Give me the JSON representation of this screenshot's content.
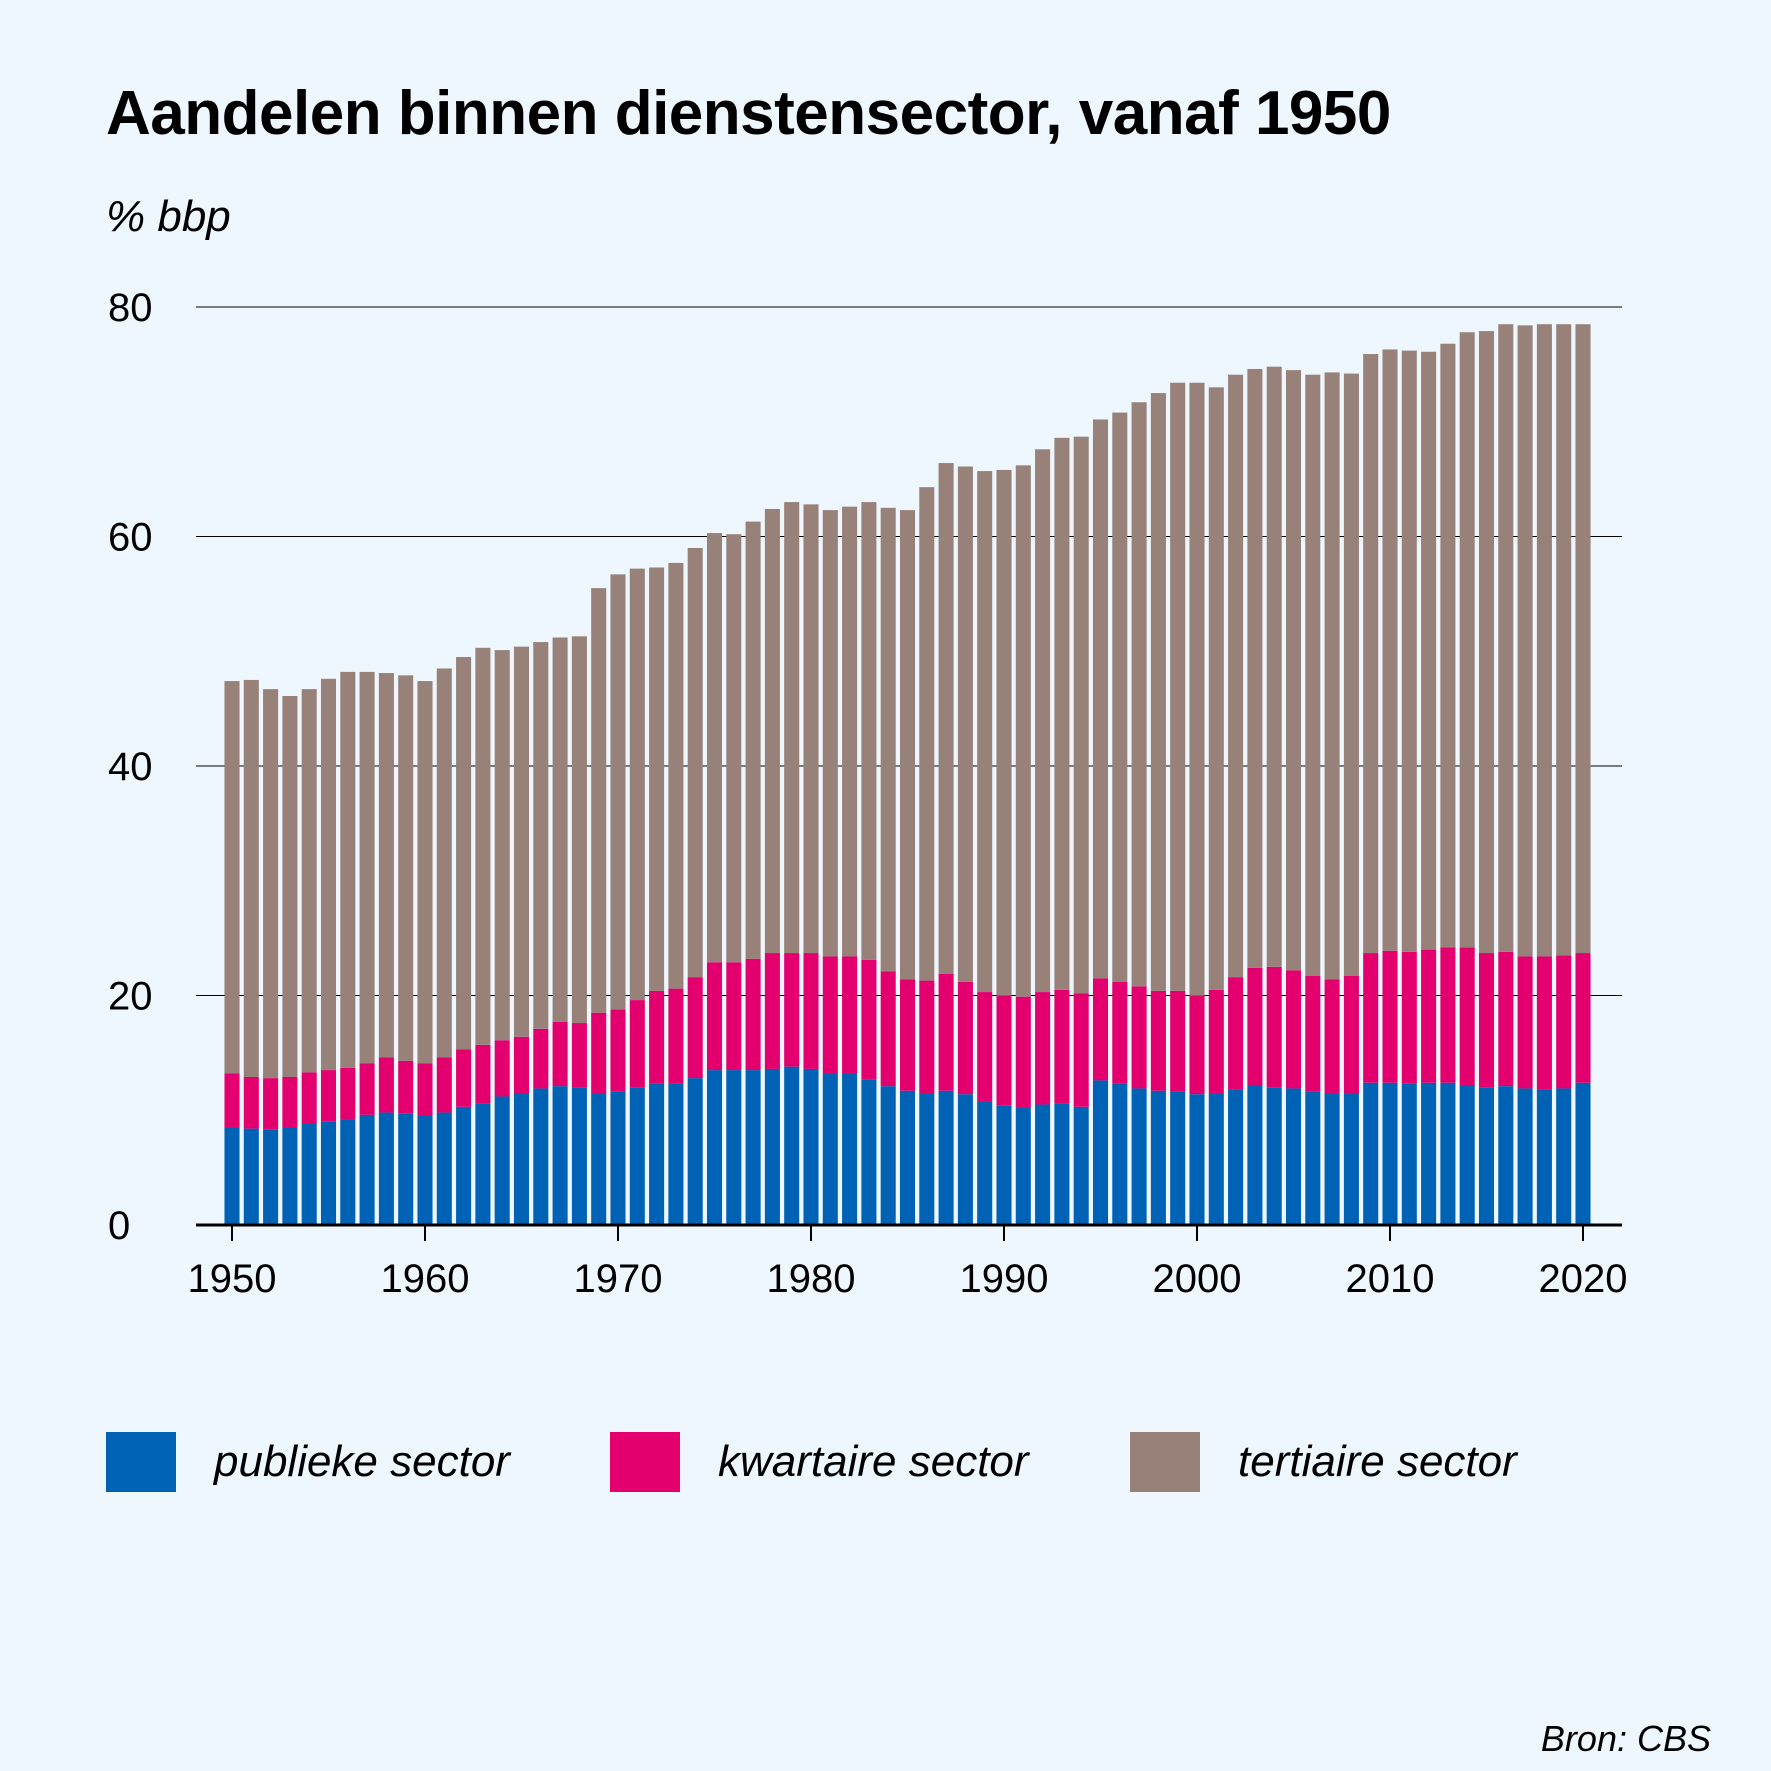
{
  "chart_data": {
    "type": "bar",
    "stacked": true,
    "title": "Aandelen binnen dienstensector, vanaf 1950",
    "ylabel": "% bbp",
    "xlabel": "",
    "ylim": [
      0,
      80
    ],
    "yticks": [
      "0",
      "20",
      "40",
      "60",
      "80"
    ],
    "yticks_values": [
      0,
      20,
      40,
      60,
      80
    ],
    "xticks": [
      "1950",
      "1960",
      "1970",
      "1980",
      "1990",
      "2000",
      "2010",
      "2020"
    ],
    "xticks_values": [
      1950,
      1960,
      1970,
      1980,
      1990,
      2000,
      2010,
      2020
    ],
    "grid": true,
    "legend_position": "bottom",
    "categories": [
      1950,
      1951,
      1952,
      1953,
      1954,
      1955,
      1956,
      1957,
      1958,
      1959,
      1960,
      1961,
      1962,
      1963,
      1964,
      1965,
      1966,
      1967,
      1968,
      1969,
      1970,
      1971,
      1972,
      1973,
      1974,
      1975,
      1976,
      1977,
      1978,
      1979,
      1980,
      1981,
      1982,
      1983,
      1984,
      1985,
      1986,
      1987,
      1988,
      1989,
      1990,
      1991,
      1992,
      1993,
      1994,
      1995,
      1996,
      1997,
      1998,
      1999,
      2000,
      2001,
      2002,
      2003,
      2004,
      2005,
      2006,
      2007,
      2008,
      2009,
      2010,
      2011,
      2012,
      2013,
      2014,
      2015,
      2016,
      2017,
      2018,
      2019,
      2020
    ],
    "series": [
      {
        "name": "publieke sector",
        "color": "#0062b5",
        "values": [
          8.5,
          8.4,
          8.3,
          8.5,
          8.8,
          9.0,
          9.2,
          9.6,
          9.8,
          9.7,
          9.5,
          9.8,
          10.3,
          10.6,
          11.2,
          11.5,
          11.9,
          12.1,
          12.0,
          11.5,
          11.6,
          12.0,
          12.3,
          12.3,
          12.8,
          13.5,
          13.5,
          13.5,
          13.6,
          13.8,
          13.6,
          13.2,
          13.2,
          12.7,
          12.1,
          11.7,
          11.5,
          11.7,
          11.4,
          10.8,
          10.4,
          10.2,
          10.5,
          10.6,
          10.3,
          12.6,
          12.3,
          11.9,
          11.7,
          11.6,
          11.4,
          11.5,
          11.8,
          12.2,
          12.0,
          11.9,
          11.6,
          11.5,
          11.5,
          12.4,
          12.4,
          12.3,
          12.4,
          12.4,
          12.2,
          12.0,
          12.1,
          11.9,
          11.8,
          11.9,
          12.4
        ]
      },
      {
        "name": "kwartaire sector",
        "color": "#e3006e",
        "values": [
          4.7,
          4.5,
          4.5,
          4.4,
          4.5,
          4.5,
          4.5,
          4.5,
          4.8,
          4.6,
          4.6,
          4.8,
          5.0,
          5.1,
          4.9,
          4.9,
          5.2,
          5.6,
          5.6,
          7.0,
          7.2,
          7.6,
          8.1,
          8.3,
          8.8,
          9.4,
          9.4,
          9.7,
          10.1,
          9.9,
          10.1,
          10.2,
          10.2,
          10.4,
          10.0,
          9.7,
          9.8,
          10.2,
          9.8,
          9.5,
          9.6,
          9.7,
          9.8,
          9.9,
          9.9,
          8.9,
          8.9,
          8.9,
          8.7,
          8.8,
          8.6,
          9.0,
          9.8,
          10.2,
          10.5,
          10.3,
          10.1,
          9.9,
          10.2,
          11.3,
          11.5,
          11.5,
          11.6,
          11.8,
          12.0,
          11.7,
          11.7,
          11.5,
          11.6,
          11.6,
          11.3
        ]
      },
      {
        "name": "tertiaire sector",
        "color": "#978179",
        "values": [
          34.2,
          34.6,
          33.9,
          33.2,
          33.4,
          34.1,
          34.5,
          34.1,
          33.5,
          33.6,
          33.3,
          33.9,
          34.2,
          34.6,
          34.0,
          34.0,
          33.7,
          33.5,
          33.7,
          37.0,
          37.9,
          37.6,
          36.9,
          37.1,
          37.4,
          37.4,
          37.3,
          38.1,
          38.7,
          39.3,
          39.1,
          38.9,
          39.2,
          39.9,
          40.4,
          40.9,
          43.0,
          44.5,
          44.9,
          45.4,
          45.8,
          46.3,
          47.3,
          48.1,
          48.5,
          48.7,
          49.6,
          50.9,
          52.1,
          53.0,
          53.4,
          52.5,
          52.5,
          52.2,
          52.3,
          52.3,
          52.4,
          52.9,
          52.5,
          52.2,
          52.4,
          52.4,
          52.1,
          52.6,
          53.6,
          54.2,
          54.7,
          55.0,
          55.1,
          55.0,
          54.8
        ]
      }
    ]
  },
  "legend": [
    {
      "label": "publieke sector",
      "color": "#0062b5"
    },
    {
      "label": "kwartaire sector",
      "color": "#e3006e"
    },
    {
      "label": "tertiaire sector",
      "color": "#978179"
    }
  ],
  "source": "Bron: CBS"
}
